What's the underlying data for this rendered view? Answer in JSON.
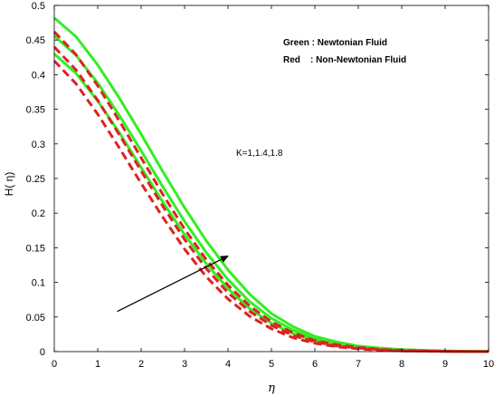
{
  "chart_data": {
    "type": "line",
    "xlabel": "η",
    "ylabel": "H( η)",
    "xlim": [
      0,
      10
    ],
    "ylim": [
      0,
      0.5
    ],
    "xticks": [
      0,
      1,
      2,
      3,
      4,
      5,
      6,
      7,
      8,
      9,
      10
    ],
    "yticks": [
      0,
      0.05,
      0.1,
      0.15,
      0.2,
      0.25,
      0.3,
      0.35,
      0.4,
      0.45,
      0.5
    ],
    "ytick_labels": [
      "0",
      "0.05",
      "0.1",
      "0.15",
      "0.2",
      "0.25",
      "0.3",
      "0.35",
      "0.4",
      "0.45",
      "0.5"
    ],
    "grid": false,
    "legend": {
      "placement": "top-right",
      "entries": [
        "Green : Newtonian Fluid",
        "Red    : Non-Newtonian Fluid"
      ]
    },
    "annotation": {
      "text": "K=1,1.4,1.8",
      "arrow_from": [
        1.45,
        0.058
      ],
      "arrow_to": [
        4.0,
        0.138
      ]
    },
    "x": [
      0,
      0.5,
      1,
      1.5,
      2,
      2.5,
      3,
      3.5,
      4,
      4.5,
      5,
      5.5,
      6,
      6.5,
      7,
      7.5,
      8,
      8.5,
      9,
      9.5,
      10
    ],
    "series": [
      {
        "color": "#33ee22",
        "style": "solid",
        "values": [
          0.482,
          0.455,
          0.414,
          0.366,
          0.314,
          0.26,
          0.208,
          0.16,
          0.118,
          0.083,
          0.055,
          0.036,
          0.022,
          0.014,
          0.008,
          0.005,
          0.003,
          0.002,
          0.001,
          0.0005,
          0.0002
        ]
      },
      {
        "color": "#33ee22",
        "style": "solid",
        "values": [
          0.456,
          0.428,
          0.388,
          0.341,
          0.29,
          0.238,
          0.188,
          0.143,
          0.104,
          0.072,
          0.048,
          0.031,
          0.019,
          0.012,
          0.007,
          0.004,
          0.002,
          0.001,
          0.0007,
          0.0003,
          0.0001
        ]
      },
      {
        "color": "#33ee22",
        "style": "solid",
        "values": [
          0.43,
          0.402,
          0.362,
          0.316,
          0.266,
          0.216,
          0.169,
          0.127,
          0.091,
          0.062,
          0.041,
          0.026,
          0.016,
          0.01,
          0.006,
          0.003,
          0.002,
          0.001,
          0.0005,
          0.0002,
          0.0001
        ]
      },
      {
        "color": "#dd2222",
        "style": "dashed",
        "values": [
          0.462,
          0.429,
          0.384,
          0.333,
          0.28,
          0.227,
          0.177,
          0.133,
          0.096,
          0.066,
          0.043,
          0.027,
          0.016,
          0.01,
          0.006,
          0.003,
          0.002,
          0.001,
          0.0005,
          0.0002,
          0.0001
        ]
      },
      {
        "color": "#dd2222",
        "style": "dashed",
        "values": [
          0.44,
          0.407,
          0.363,
          0.313,
          0.261,
          0.21,
          0.162,
          0.12,
          0.085,
          0.058,
          0.038,
          0.023,
          0.014,
          0.008,
          0.005,
          0.003,
          0.001,
          0.0008,
          0.0004,
          0.0002,
          0.0001
        ]
      },
      {
        "color": "#dd2222",
        "style": "dashed",
        "values": [
          0.42,
          0.387,
          0.343,
          0.294,
          0.243,
          0.194,
          0.148,
          0.108,
          0.076,
          0.051,
          0.033,
          0.02,
          0.012,
          0.007,
          0.004,
          0.002,
          0.001,
          0.0006,
          0.0003,
          0.0001,
          5e-05
        ]
      }
    ]
  }
}
